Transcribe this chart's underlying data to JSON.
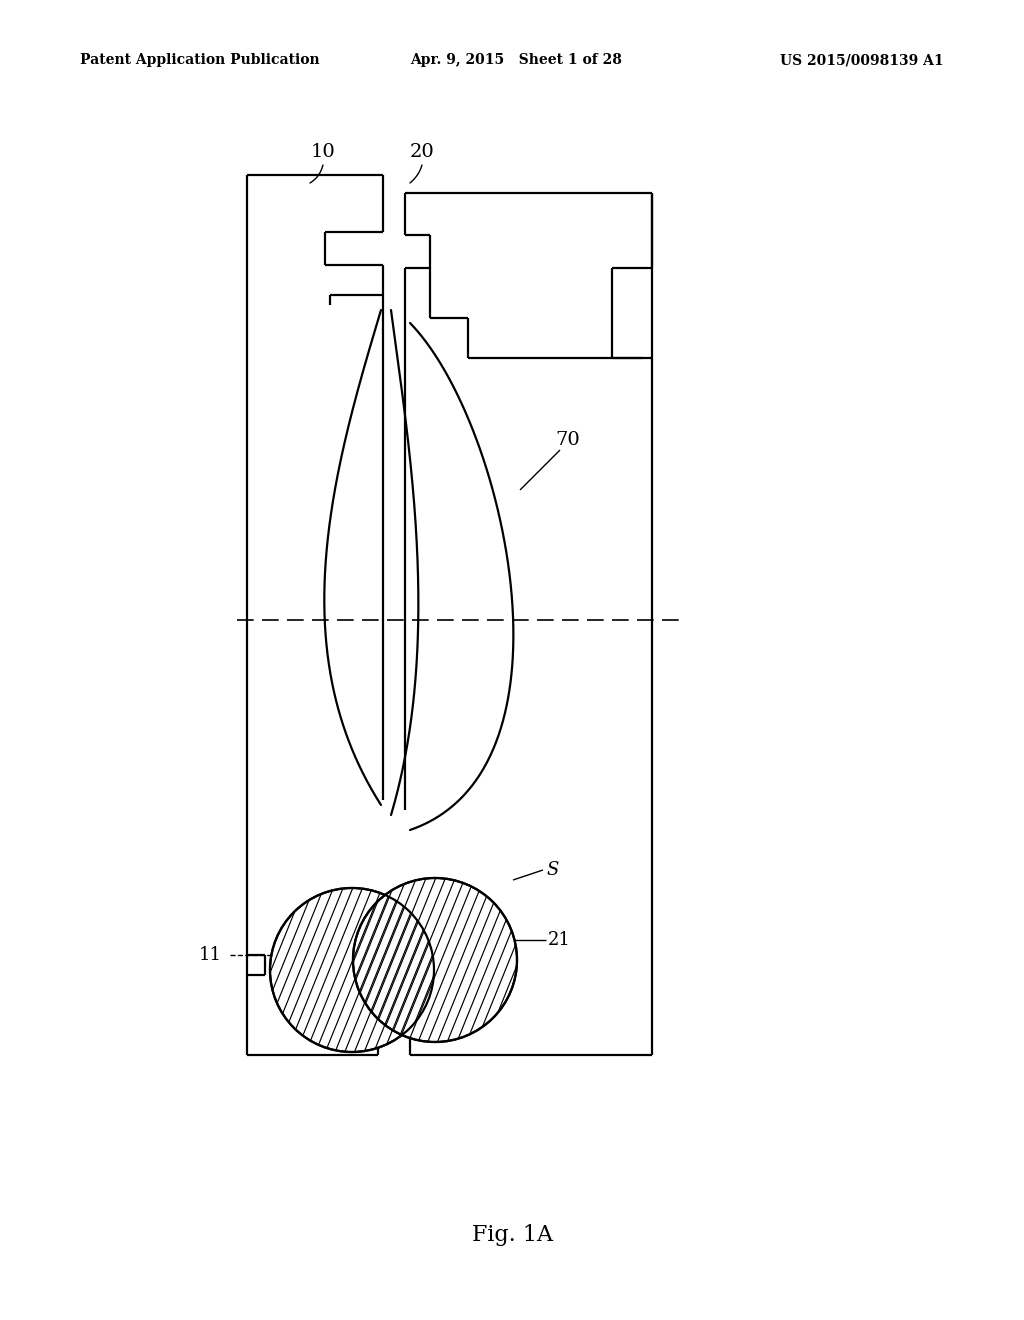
{
  "title": "Fig. 1A",
  "header_left": "Patent Application Publication",
  "header_center": "Apr. 9, 2015   Sheet 1 of 28",
  "header_right": "US 2015/0098139 A1",
  "bg_color": "#ffffff",
  "line_color": "#000000",
  "label_10": "10",
  "label_20": "20",
  "label_70": "70",
  "label_11": "11",
  "label_21": "21",
  "label_S": "S",
  "fig_label": "Fig. 1A",
  "lw_main": 1.6,
  "lw_thin": 1.0,
  "lw_axis": 1.2,
  "font_size_header": 10,
  "font_size_label": 14,
  "font_size_title": 16,
  "coord_system": "image_pixels_1024x1320"
}
